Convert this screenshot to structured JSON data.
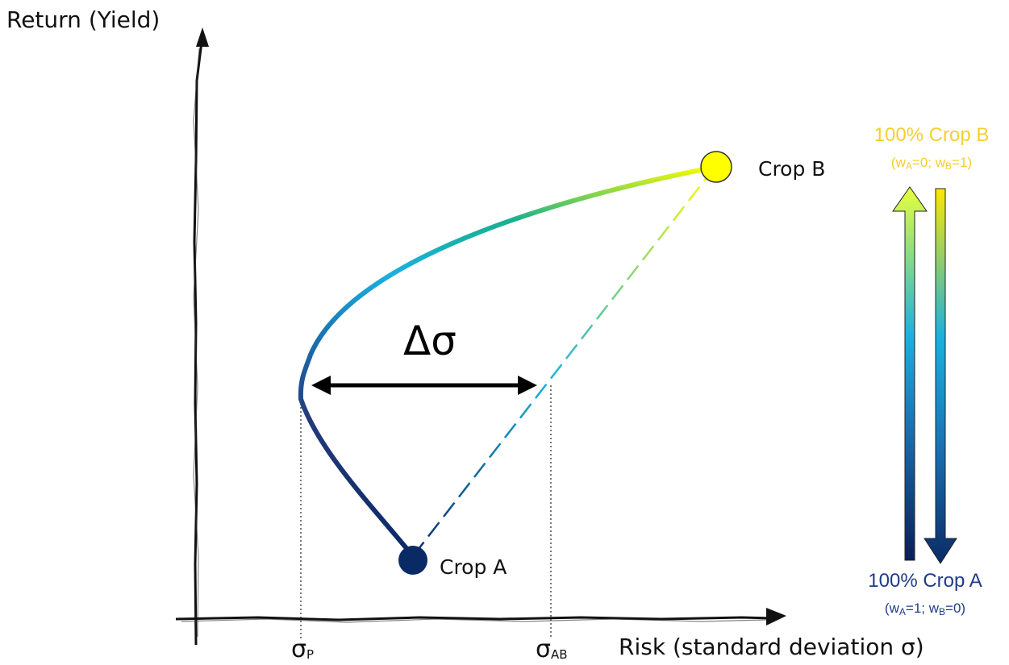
{
  "axes": {
    "y_label": "Return (Yield)",
    "x_label": "Risk (standard deviation σ)"
  },
  "points": {
    "crop_a": {
      "label": "Crop A",
      "color": "#0a2a66"
    },
    "crop_b": {
      "label": "Crop B",
      "color": "#ffff00"
    }
  },
  "ticks": {
    "sigma_p": {
      "symbol": "σ",
      "sub": "P"
    },
    "sigma_ab": {
      "symbol": "σ",
      "sub": "AB"
    }
  },
  "delta_label": "Δσ",
  "legend": {
    "top_title": "100% Crop B",
    "top_sub": {
      "open": "(w",
      "a": "A",
      "mid": "=0; w",
      "b": "B",
      "close": "=1)"
    },
    "top_color": "#f5cf2f",
    "bottom_title": "100% Crop A",
    "bottom_sub": {
      "open": "(w",
      "a": "A",
      "mid": "=1; w",
      "b": "B",
      "close": "=0)"
    },
    "bottom_color": "#1f3c88"
  },
  "colors": {
    "gradient": [
      "#0a2a66",
      "#1e4f8f",
      "#1a7fc0",
      "#1ab0e0",
      "#17b2a0",
      "#7acb3c",
      "#ffff00"
    ]
  }
}
